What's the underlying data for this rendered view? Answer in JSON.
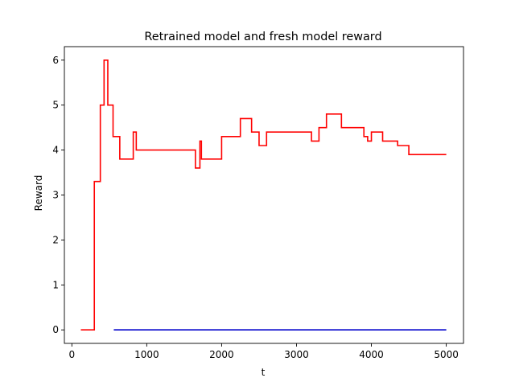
{
  "chart_data": {
    "type": "line",
    "title": "Retrained model and fresh model reward",
    "xlabel": "t",
    "ylabel": "Reward",
    "xlim": [
      -100,
      5230
    ],
    "ylim": [
      -0.3,
      6.3
    ],
    "xticks": [
      0,
      1000,
      2000,
      3000,
      4000,
      5000
    ],
    "yticks": [
      0,
      1,
      2,
      3,
      4,
      5,
      6
    ],
    "grid": false,
    "series": [
      {
        "color": "#ff0000",
        "step": "post",
        "x": [
          120,
          280,
          300,
          340,
          380,
          430,
          480,
          510,
          550,
          600,
          640,
          680,
          760,
          820,
          860,
          900,
          950,
          1000,
          1200,
          1400,
          1600,
          1650,
          1700,
          1710,
          1730,
          1750,
          1800,
          1900,
          1950,
          2000,
          2050,
          2100,
          2150,
          2200,
          2250,
          2300,
          2350,
          2400,
          2450,
          2500,
          2600,
          2650,
          2700,
          2800,
          2900,
          3000,
          3100,
          3200,
          3250,
          3300,
          3350,
          3400,
          3500,
          3600,
          3700,
          3800,
          3900,
          3950,
          4000,
          4050,
          4100,
          4150,
          4200,
          4250,
          4350,
          4400,
          4500,
          4550,
          4600,
          4700,
          4800,
          4900,
          5000
        ],
        "y": [
          0,
          0,
          3.3,
          3.3,
          5.0,
          6.0,
          5.0,
          5.0,
          4.3,
          4.3,
          3.8,
          3.8,
          3.8,
          4.4,
          4.0,
          4.0,
          4.0,
          4.0,
          4.0,
          4.0,
          4.0,
          3.6,
          3.6,
          4.2,
          3.8,
          3.8,
          3.8,
          3.8,
          3.8,
          4.3,
          4.3,
          4.3,
          4.3,
          4.3,
          4.7,
          4.7,
          4.7,
          4.4,
          4.4,
          4.1,
          4.4,
          4.4,
          4.4,
          4.4,
          4.4,
          4.4,
          4.4,
          4.2,
          4.2,
          4.5,
          4.5,
          4.8,
          4.8,
          4.5,
          4.5,
          4.5,
          4.3,
          4.2,
          4.4,
          4.4,
          4.4,
          4.2,
          4.2,
          4.2,
          4.1,
          4.1,
          3.9,
          3.9,
          3.9,
          3.9,
          3.9,
          3.9,
          3.9
        ]
      },
      {
        "color": "#0000cc",
        "step": "post",
        "x": [
          560,
          5000
        ],
        "y": [
          0,
          0
        ]
      }
    ]
  }
}
